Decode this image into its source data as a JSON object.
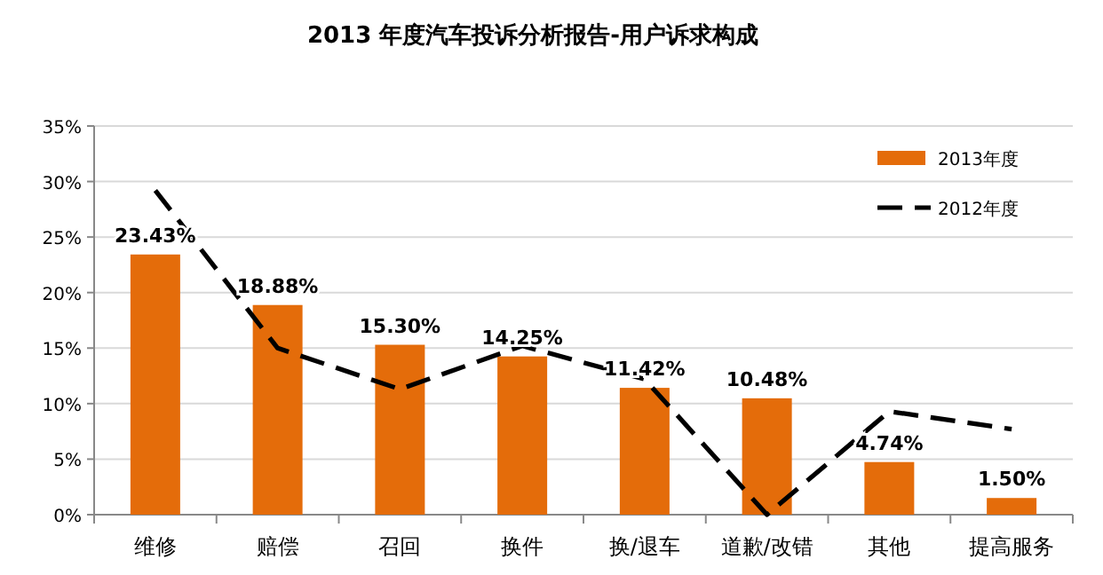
{
  "chart_data": {
    "type": "bar",
    "title": "2013 年度汽车投诉分析报告-用户诉求构成",
    "categories": [
      "维修",
      "赔偿",
      "召回",
      "换件",
      "换/退车",
      "道歉/改错",
      "其他",
      "提高服务"
    ],
    "series": [
      {
        "name": "2013年度",
        "color": "#e46c0a",
        "values": [
          23.43,
          18.88,
          15.3,
          14.25,
          11.42,
          10.48,
          4.74,
          1.5
        ],
        "value_labels": [
          "23.43%",
          "18.88%",
          "15.30%",
          "14.25%",
          "11.42%",
          "10.48%",
          "4.74%",
          "1.50%"
        ]
      },
      {
        "name": "2012年度",
        "type": "line",
        "color": "#000000",
        "line_style": "dashed",
        "marker": "none",
        "values": [
          29.2,
          15.0,
          11.3,
          15.2,
          12.2,
          0,
          9.3,
          7.7
        ]
      }
    ],
    "ylim": [
      0,
      35
    ],
    "yticks": [
      {
        "value": 0,
        "label": "0%"
      },
      {
        "value": 5,
        "label": "5%"
      },
      {
        "value": 10,
        "label": "10%"
      },
      {
        "value": 15,
        "label": "15%"
      },
      {
        "value": 20,
        "label": "20%"
      },
      {
        "value": 25,
        "label": "25%"
      },
      {
        "value": 30,
        "label": "30%"
      },
      {
        "value": 35,
        "label": "35%"
      }
    ],
    "grid": "y",
    "legend": "top right"
  }
}
